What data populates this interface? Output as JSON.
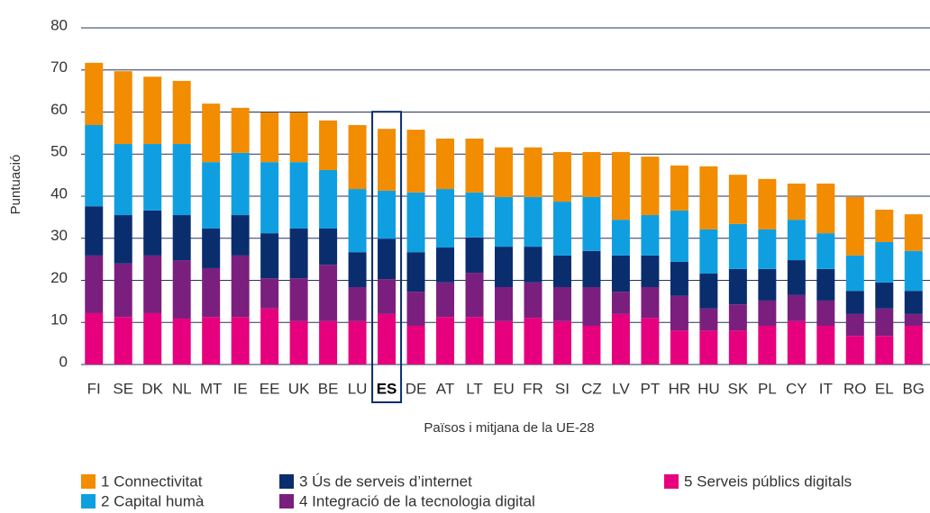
{
  "chart_data": {
    "type": "stacked_bar",
    "y_label": "Puntuació",
    "x_label": "Països i mitjana de la UE-28",
    "categories": [
      "FI",
      "SE",
      "DK",
      "NL",
      "MT",
      "IE",
      "EE",
      "UK",
      "BE",
      "LU",
      "ES",
      "DE",
      "AT",
      "LT",
      "EU",
      "FR",
      "SI",
      "CZ",
      "LV",
      "PT",
      "HR",
      "HU",
      "SK",
      "PL",
      "CY",
      "IT",
      "RO",
      "EL",
      "BG"
    ],
    "highlight": "ES",
    "series": [
      {
        "name": "1 Connectivitat",
        "color": "#f28c00",
        "values": [
          14.8,
          17.3,
          16.0,
          15.0,
          13.9,
          10.7,
          11.8,
          11.8,
          11.8,
          15.2,
          14.7,
          14.9,
          12.0,
          12.8,
          11.8,
          11.8,
          11.8,
          10.7,
          16.1,
          13.9,
          10.7,
          15.0,
          11.7,
          12.0,
          8.6,
          11.8,
          13.9,
          7.7,
          8.7
        ]
      },
      {
        "name": "2 Capital humà",
        "color": "#0f9fe0",
        "values": [
          19.3,
          16.9,
          15.8,
          16.9,
          15.8,
          14.8,
          16.9,
          15.8,
          13.9,
          15.0,
          11.4,
          14.2,
          13.9,
          10.7,
          11.8,
          11.8,
          12.8,
          12.8,
          8.5,
          9.6,
          12.2,
          10.5,
          10.7,
          9.4,
          9.6,
          8.5,
          8.4,
          9.6,
          9.5
        ]
      },
      {
        "name": "3 Ús de serveis d’internet",
        "color": "#0a2d6e",
        "values": [
          11.7,
          11.5,
          10.7,
          10.7,
          9.4,
          9.6,
          10.7,
          11.8,
          8.6,
          8.3,
          9.6,
          9.4,
          8.3,
          8.4,
          9.6,
          8.5,
          7.5,
          8.6,
          8.6,
          7.5,
          8.1,
          8.3,
          8.4,
          7.5,
          8.3,
          7.5,
          5.5,
          6.2,
          5.5
        ]
      },
      {
        "name": "4 Integració de la tecnologia digital",
        "color": "#7b1f7e",
        "values": [
          13.7,
          12.7,
          13.7,
          13.9,
          11.6,
          14.6,
          7.2,
          10.2,
          13.4,
          8.1,
          8.3,
          8.1,
          8.2,
          10.5,
          8.1,
          8.4,
          8.1,
          9.2,
          5.3,
          7.3,
          8.2,
          5.2,
          6.2,
          6.0,
          6.2,
          6.0,
          5.2,
          6.5,
          2.8
        ]
      },
      {
        "name": "5 Serveis públics digitals",
        "color": "#e6007e",
        "values": [
          12.2,
          11.3,
          12.2,
          10.9,
          11.3,
          11.3,
          13.3,
          10.3,
          10.3,
          10.3,
          12.0,
          9.2,
          11.3,
          11.3,
          10.3,
          11.1,
          10.3,
          9.2,
          12.0,
          11.1,
          8.1,
          8.1,
          8.1,
          9.2,
          10.3,
          9.2,
          6.8,
          6.8,
          9.2
        ]
      }
    ],
    "ylim": [
      0,
      80
    ],
    "yticks": [
      0,
      10,
      20,
      30,
      40,
      50,
      60,
      70,
      80
    ],
    "grid": true
  }
}
